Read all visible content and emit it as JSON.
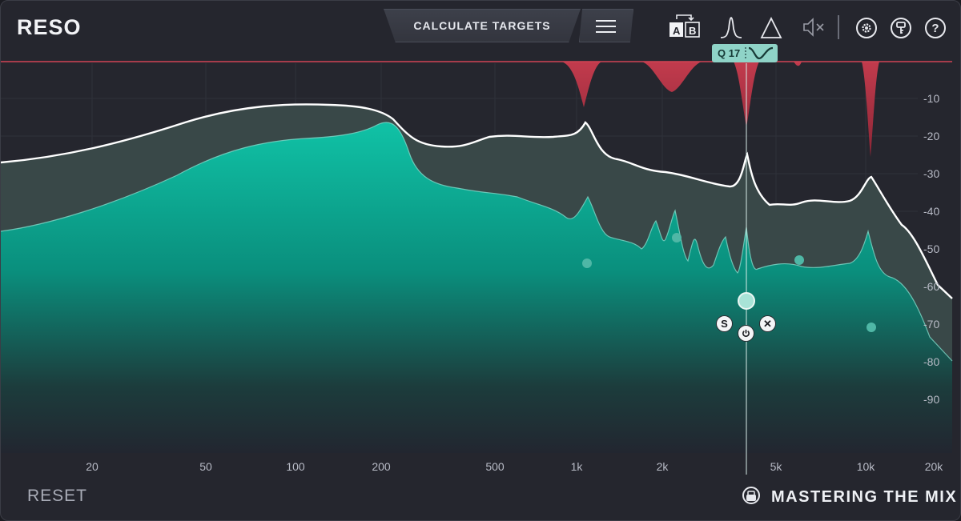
{
  "header": {
    "title": "RESO",
    "calculate_label": "CALCULATE TARGETS",
    "toolbar_icons": [
      "menu-icon",
      "ab-compare-icon",
      "bell-filter-icon",
      "triangle-icon",
      "speaker-mute-icon",
      "gear-icon",
      "key-icon",
      "help-icon"
    ],
    "ab": {
      "a": "A",
      "b": "B"
    },
    "help_glyph": "?"
  },
  "graph": {
    "freq_labels": [
      "20",
      "50",
      "100",
      "200",
      "500",
      "1k",
      "2k",
      "5k",
      "10k",
      "20k"
    ],
    "db_labels": [
      "-10",
      "-20",
      "-30",
      "-40",
      "-50",
      "-60",
      "-70",
      "-80",
      "-90"
    ],
    "selected_band": {
      "q_label": "Q 17",
      "solo_glyph": "S",
      "remove_glyph": "✕"
    }
  },
  "footer": {
    "reset_label": "RESET",
    "brand": "MASTERING THE MIX"
  },
  "colors": {
    "background": "#25262e",
    "accent_teal": "#0fae96",
    "reduction_red": "#b8394a",
    "curve_white": "#ffffff"
  }
}
